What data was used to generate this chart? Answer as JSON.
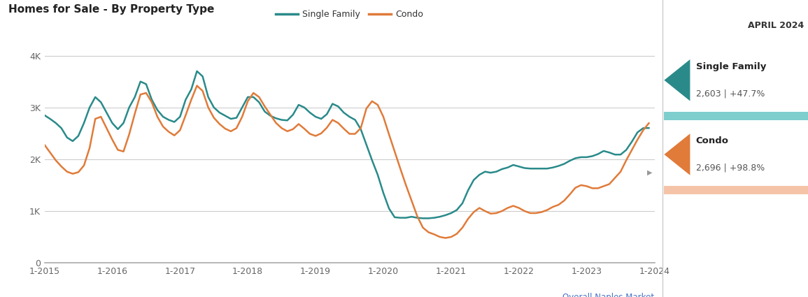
{
  "title": "Homes for Sale - By Property Type",
  "sidebar_title": "APRIL 2024",
  "sf_label": "Single Family",
  "sf_value": "2,603 | +47.7%",
  "condo_label": "Condo",
  "condo_value": "2,696 | +98.8%",
  "sf_color": "#2a8a8a",
  "condo_color": "#e07b39",
  "sf_bar_color": "#7ecece",
  "condo_bar_color": "#f5c4a8",
  "background_color": "#ffffff",
  "ylabel_ticks": [
    "0",
    "1K",
    "2K",
    "3K",
    "4K"
  ],
  "ylabel_values": [
    0,
    1000,
    2000,
    3000,
    4000
  ],
  "xlabels": [
    "1-2015",
    "1-2016",
    "1-2017",
    "1-2018",
    "1-2019",
    "1-2020",
    "1-2021",
    "1-2022",
    "1-2023",
    "1-2024"
  ],
  "watermark": "Overall Naples Market",
  "single_family": [
    2850,
    2780,
    2700,
    2600,
    2420,
    2350,
    2450,
    2700,
    3000,
    3200,
    3100,
    2900,
    2700,
    2580,
    2700,
    3000,
    3200,
    3500,
    3450,
    3150,
    2950,
    2820,
    2760,
    2720,
    2820,
    3150,
    3350,
    3700,
    3600,
    3200,
    3000,
    2900,
    2840,
    2780,
    2800,
    3000,
    3200,
    3200,
    3100,
    2920,
    2840,
    2790,
    2760,
    2750,
    2860,
    3050,
    3000,
    2900,
    2820,
    2780,
    2870,
    3070,
    3020,
    2900,
    2820,
    2760,
    2580,
    2280,
    1980,
    1700,
    1350,
    1050,
    880,
    870,
    870,
    890,
    870,
    860,
    860,
    870,
    890,
    920,
    960,
    1020,
    1150,
    1400,
    1600,
    1700,
    1760,
    1740,
    1760,
    1810,
    1840,
    1890,
    1860,
    1830,
    1820,
    1820,
    1820,
    1820,
    1840,
    1870,
    1910,
    1970,
    2020,
    2040,
    2040,
    2060,
    2100,
    2160,
    2130,
    2090,
    2090,
    2180,
    2340,
    2520,
    2600,
    2603
  ],
  "condo": [
    2280,
    2130,
    1980,
    1860,
    1760,
    1720,
    1750,
    1880,
    2220,
    2780,
    2820,
    2600,
    2380,
    2180,
    2150,
    2480,
    2880,
    3250,
    3280,
    3100,
    2820,
    2630,
    2530,
    2460,
    2560,
    2850,
    3150,
    3420,
    3320,
    3000,
    2800,
    2680,
    2590,
    2540,
    2600,
    2820,
    3120,
    3280,
    3200,
    3020,
    2860,
    2700,
    2600,
    2540,
    2580,
    2680,
    2590,
    2490,
    2450,
    2500,
    2610,
    2760,
    2700,
    2590,
    2490,
    2490,
    2600,
    2980,
    3120,
    3050,
    2820,
    2480,
    2150,
    1820,
    1500,
    1200,
    900,
    680,
    590,
    550,
    500,
    480,
    500,
    560,
    680,
    850,
    980,
    1060,
    1000,
    950,
    960,
    1000,
    1060,
    1100,
    1060,
    1000,
    960,
    960,
    980,
    1020,
    1080,
    1120,
    1200,
    1320,
    1450,
    1500,
    1480,
    1440,
    1440,
    1480,
    1520,
    1640,
    1760,
    1980,
    2180,
    2380,
    2560,
    2696
  ]
}
